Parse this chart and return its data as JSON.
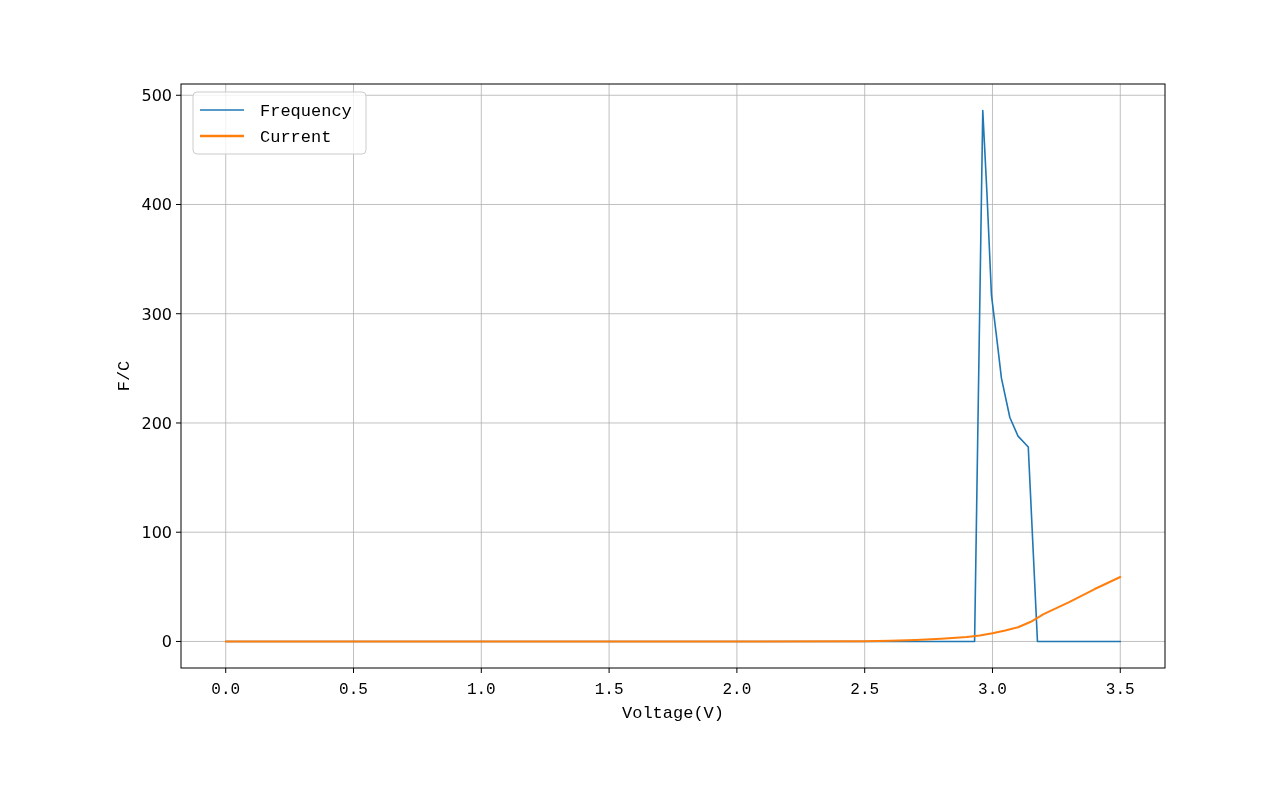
{
  "chart_data": {
    "type": "line",
    "xlabel": "Voltage(V)",
    "ylabel": "F/C",
    "xlim": [
      -0.175,
      3.675
    ],
    "ylim": [
      -24.3,
      510.3
    ],
    "xticks": [
      {
        "value": 0,
        "label": "0.0"
      },
      {
        "value": 0.5,
        "label": "0.5"
      },
      {
        "value": 1,
        "label": "1.0"
      },
      {
        "value": 1.5,
        "label": "1.5"
      },
      {
        "value": 2,
        "label": "2.0"
      },
      {
        "value": 2.5,
        "label": "2.5"
      },
      {
        "value": 3,
        "label": "3.0"
      },
      {
        "value": 3.5,
        "label": "3.5"
      }
    ],
    "yticks": [
      0,
      100,
      200,
      300,
      400,
      500
    ],
    "grid": true,
    "legend": "top left",
    "marker": "none",
    "line_style": "solid",
    "series": [
      {
        "name": "Frequency",
        "color": "#1f77b4",
        "x": [
          0,
          2.93,
          2.962,
          2.978,
          2.996,
          3.017,
          3.035,
          3.068,
          3.1,
          3.14,
          3.176,
          3.5
        ],
        "values": [
          0,
          0,
          486,
          412,
          317,
          277,
          241,
          205,
          188,
          178,
          0,
          0
        ]
      },
      {
        "name": "Current",
        "color": "#ff7f0e",
        "x": [
          0,
          0.5,
          1,
          1.5,
          2,
          2.5,
          2.6,
          2.7,
          2.8,
          2.9,
          2.95,
          3.0,
          3.05,
          3.1,
          3.15,
          3.2,
          3.3,
          3.4,
          3.5
        ],
        "values": [
          0,
          0,
          0,
          0,
          0,
          0.3,
          0.6,
          1.3,
          2.5,
          4,
          5.5,
          7.5,
          10,
          13,
          18,
          25,
          36,
          48,
          59
        ]
      }
    ]
  }
}
